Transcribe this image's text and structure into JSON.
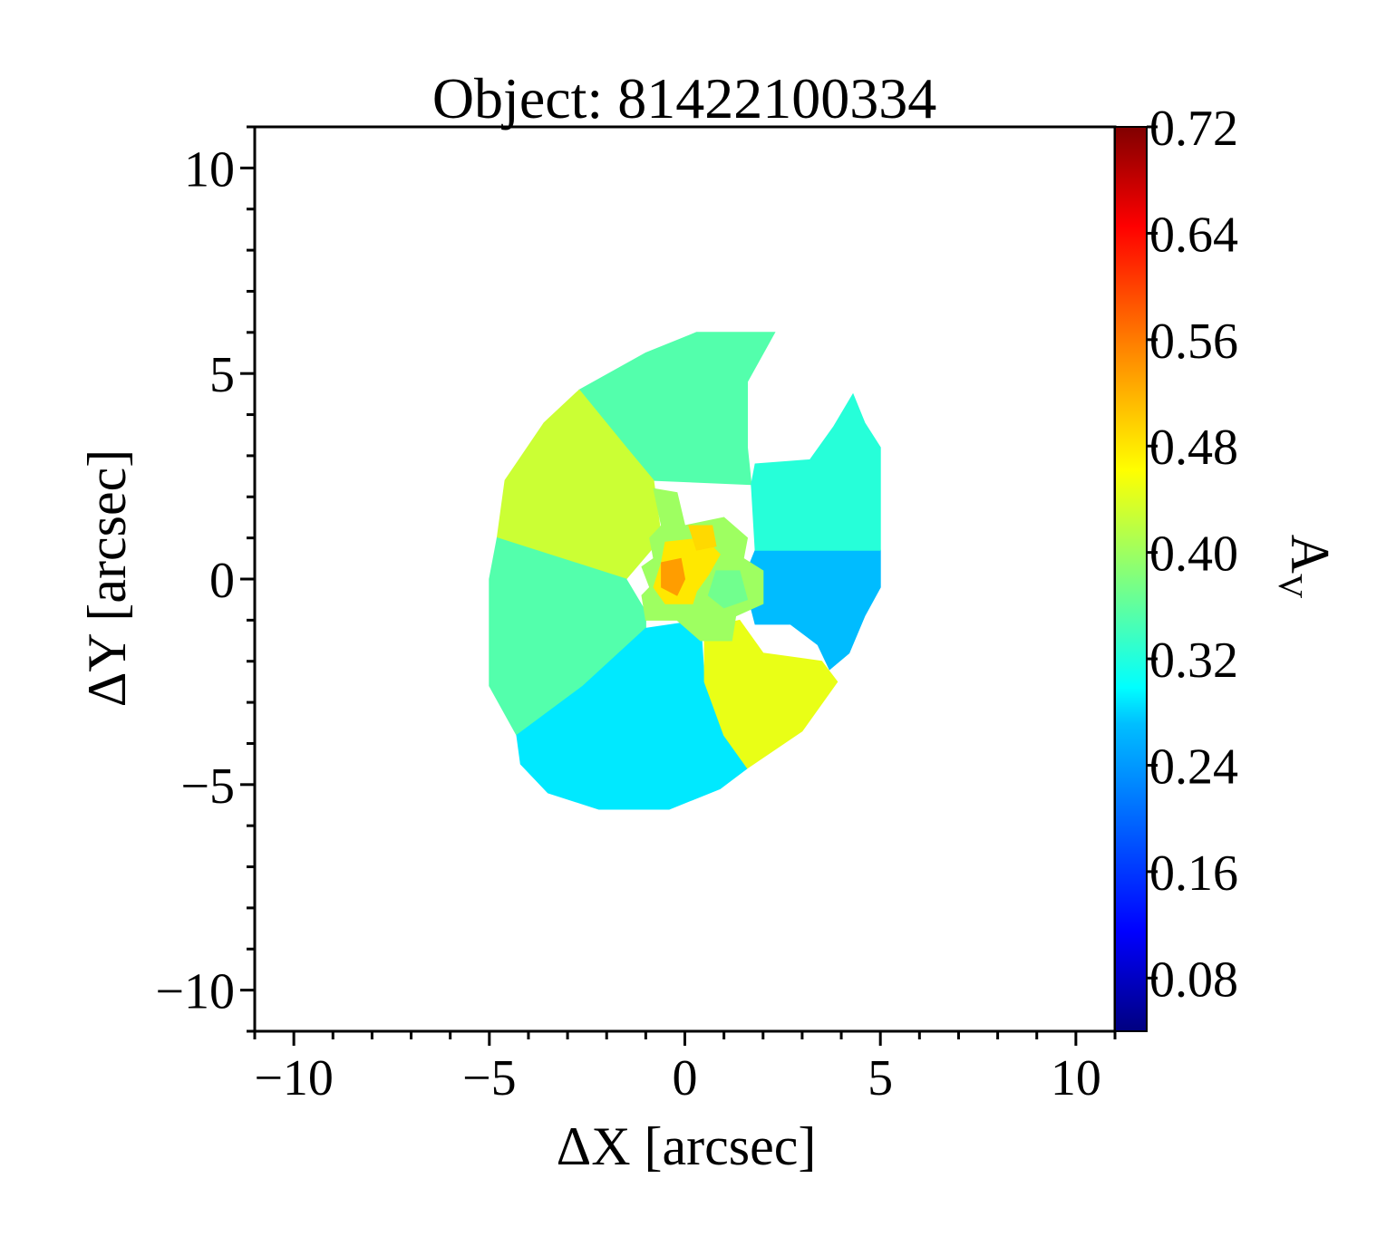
{
  "chart_data": {
    "type": "heatmap",
    "title": "Object: 81422100334",
    "xlabel": "ΔX [arcsec]",
    "ylabel": "ΔY [arcsec]",
    "xlim": [
      -11,
      11
    ],
    "ylim": [
      -11,
      11
    ],
    "xticks": [
      -10,
      -5,
      0,
      5,
      10
    ],
    "yticks": [
      -10,
      -5,
      0,
      5,
      10
    ],
    "xtick_labels": [
      "−10",
      "−5",
      "0",
      "5",
      "10"
    ],
    "ytick_labels": [
      "−10",
      "−5",
      "0",
      "5",
      "10"
    ],
    "colorbar": {
      "label_main": "A",
      "label_sub": "V",
      "range": [
        0.04,
        0.72
      ],
      "ticks": [
        0.08,
        0.16,
        0.24,
        0.32,
        0.4,
        0.48,
        0.56,
        0.64,
        0.72
      ],
      "tick_labels": [
        "0.08",
        "0.16",
        "0.24",
        "0.32",
        "0.40",
        "0.48",
        "0.56",
        "0.64",
        "0.72"
      ],
      "colormap": "jet"
    },
    "regions": [
      {
        "name": "top-sector",
        "value": 0.35,
        "polygon": [
          [
            -2.7,
            4.6
          ],
          [
            -1.0,
            5.5
          ],
          [
            0.3,
            6.0
          ],
          [
            2.3,
            6.0
          ],
          [
            1.6,
            4.8
          ],
          [
            1.6,
            3.2
          ],
          [
            1.7,
            2.3
          ],
          [
            -0.8,
            2.4
          ],
          [
            -1.5,
            3.2
          ],
          [
            -2.7,
            4.6
          ]
        ]
      },
      {
        "name": "upper-left-sector",
        "value": 0.43,
        "polygon": [
          [
            -2.7,
            4.6
          ],
          [
            -1.5,
            3.2
          ],
          [
            -0.8,
            2.4
          ],
          [
            -0.6,
            1.0
          ],
          [
            -1.5,
            0.0
          ],
          [
            -4.8,
            1.0
          ],
          [
            -4.6,
            2.4
          ],
          [
            -3.6,
            3.8
          ],
          [
            -2.7,
            4.6
          ]
        ]
      },
      {
        "name": "left-sector",
        "value": 0.35,
        "polygon": [
          [
            -4.8,
            1.0
          ],
          [
            -1.5,
            0.0
          ],
          [
            -1.0,
            -0.8
          ],
          [
            -1.0,
            -1.2
          ],
          [
            -2.6,
            -2.6
          ],
          [
            -4.3,
            -3.8
          ],
          [
            -5.0,
            -2.6
          ],
          [
            -5.0,
            0.0
          ],
          [
            -4.8,
            1.0
          ]
        ]
      },
      {
        "name": "bottom-left-sector",
        "value": 0.28,
        "polygon": [
          [
            -4.3,
            -3.8
          ],
          [
            -2.6,
            -2.6
          ],
          [
            -1.0,
            -1.2
          ],
          [
            0.4,
            -1.0
          ],
          [
            0.5,
            -2.5
          ],
          [
            1.0,
            -3.8
          ],
          [
            1.6,
            -4.6
          ],
          [
            0.9,
            -5.1
          ],
          [
            -0.4,
            -5.6
          ],
          [
            -2.2,
            -5.6
          ],
          [
            -3.5,
            -5.2
          ],
          [
            -4.2,
            -4.5
          ],
          [
            -4.3,
            -3.8
          ]
        ]
      },
      {
        "name": "bottom-right-sector",
        "value": 0.45,
        "polygon": [
          [
            0.5,
            -1.2
          ],
          [
            1.4,
            -1.0
          ],
          [
            2.0,
            -1.8
          ],
          [
            3.5,
            -2.0
          ],
          [
            3.9,
            -2.5
          ],
          [
            3.0,
            -3.7
          ],
          [
            1.6,
            -4.6
          ],
          [
            1.0,
            -3.8
          ],
          [
            0.5,
            -2.5
          ],
          [
            0.5,
            -1.2
          ]
        ]
      },
      {
        "name": "right-blue-sector",
        "value": 0.25,
        "polygon": [
          [
            1.8,
            0.7
          ],
          [
            5.0,
            0.7
          ],
          [
            5.0,
            -0.2
          ],
          [
            4.6,
            -0.9
          ],
          [
            4.2,
            -1.8
          ],
          [
            3.7,
            -2.2
          ],
          [
            3.4,
            -1.6
          ],
          [
            2.7,
            -1.1
          ],
          [
            1.8,
            -1.1
          ],
          [
            1.5,
            0.0
          ],
          [
            1.8,
            0.7
          ]
        ]
      },
      {
        "name": "upper-right-sector",
        "value": 0.32,
        "polygon": [
          [
            1.7,
            2.3
          ],
          [
            1.8,
            2.8
          ],
          [
            3.2,
            2.9
          ],
          [
            3.8,
            3.7
          ],
          [
            4.3,
            4.5
          ],
          [
            4.6,
            3.8
          ],
          [
            5.0,
            3.2
          ],
          [
            5.0,
            0.7
          ],
          [
            1.8,
            0.7
          ],
          [
            1.7,
            2.3
          ]
        ]
      },
      {
        "name": "core-ring",
        "value": 0.4,
        "polygon": [
          [
            -0.8,
            2.2
          ],
          [
            -0.2,
            2.1
          ],
          [
            0.0,
            1.3
          ],
          [
            1.0,
            1.5
          ],
          [
            1.6,
            1.0
          ],
          [
            1.5,
            0.5
          ],
          [
            2.0,
            0.2
          ],
          [
            2.0,
            -0.6
          ],
          [
            1.3,
            -0.9
          ],
          [
            1.2,
            -1.5
          ],
          [
            0.4,
            -1.5
          ],
          [
            -0.2,
            -1.0
          ],
          [
            -1.0,
            -1.0
          ],
          [
            -1.1,
            -0.4
          ],
          [
            -0.9,
            -0.2
          ],
          [
            -1.1,
            0.3
          ],
          [
            -0.8,
            0.5
          ],
          [
            -0.9,
            1.0
          ],
          [
            -0.6,
            1.3
          ],
          [
            -0.8,
            2.2
          ]
        ]
      },
      {
        "name": "core-yellow",
        "value": 0.48,
        "polygon": [
          [
            -0.5,
            0.9
          ],
          [
            0.5,
            1.0
          ],
          [
            0.9,
            0.6
          ],
          [
            0.6,
            0.1
          ],
          [
            0.3,
            -0.3
          ],
          [
            0.2,
            -0.6
          ],
          [
            -0.5,
            -0.6
          ],
          [
            -0.8,
            -0.2
          ],
          [
            -0.6,
            0.4
          ],
          [
            -0.5,
            0.9
          ]
        ]
      },
      {
        "name": "core-peak",
        "value": 0.53,
        "polygon": [
          [
            -0.6,
            0.4
          ],
          [
            -0.1,
            0.5
          ],
          [
            0.0,
            0.0
          ],
          [
            -0.2,
            -0.4
          ],
          [
            -0.6,
            -0.2
          ],
          [
            -0.6,
            0.4
          ]
        ]
      },
      {
        "name": "core-knot-top",
        "value": 0.49,
        "polygon": [
          [
            0.1,
            1.3
          ],
          [
            0.7,
            1.3
          ],
          [
            0.8,
            0.8
          ],
          [
            0.3,
            0.7
          ],
          [
            0.1,
            1.3
          ]
        ]
      },
      {
        "name": "core-knot-right",
        "value": 0.37,
        "polygon": [
          [
            0.8,
            0.2
          ],
          [
            1.4,
            0.2
          ],
          [
            1.6,
            -0.5
          ],
          [
            1.0,
            -0.7
          ],
          [
            0.6,
            -0.4
          ],
          [
            0.8,
            0.2
          ]
        ]
      }
    ],
    "grid": false
  }
}
